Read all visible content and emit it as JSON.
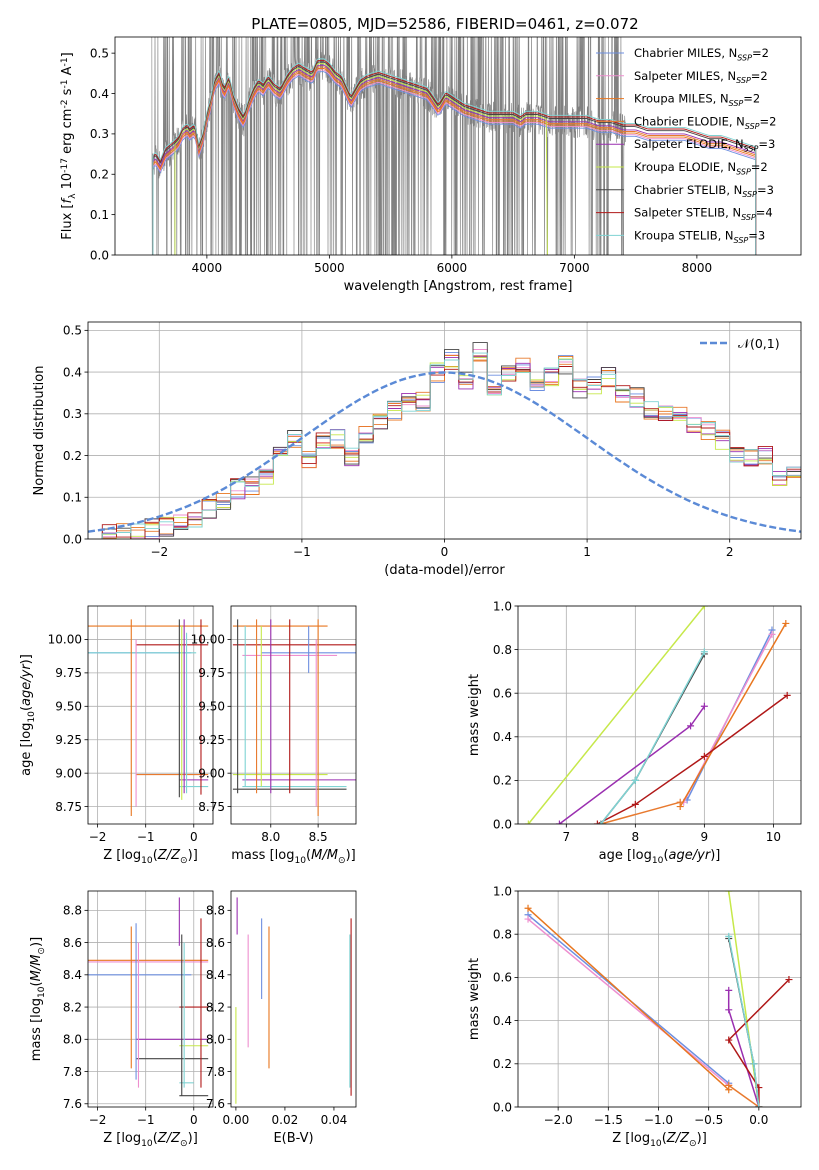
{
  "figure_title": "PLATE=0805, MJD=52586, FIBERID=0461, z=0.072",
  "colors": {
    "Chabrier MILES": "#6d8fe0",
    "Salpeter MILES": "#ee8fcf",
    "Kroupa MILES": "#e8761f",
    "Chabrier ELODIE": "#e87a2f",
    "Salpeter ELODIE": "#9a2fb0",
    "Kroupa ELODIE": "#c6e84a",
    "Chabrier STELIB": "#444444",
    "Salpeter STELIB": "#b01818",
    "Kroupa STELIB": "#7fd3d3",
    "data": "#808080",
    "normal": "#5b8ad6"
  },
  "chart_data": [
    {
      "id": "spectrum",
      "type": "line",
      "title": "PLATE=0805, MJD=52586, FIBERID=0461, z=0.072",
      "xlabel": "wavelength [Angstrom, rest frame]",
      "ylabel": "Flux [$f_\\lambda 10^{-17}$ erg cm$^{-2}$ s$^{-1}$ A$^{-1}$]",
      "xlim": [
        3250,
        8850
      ],
      "ylim": [
        0,
        0.54
      ],
      "xticks": [
        4000,
        5000,
        6000,
        7000,
        8000
      ],
      "yticks": [
        0.0,
        0.1,
        0.2,
        0.3,
        0.4,
        0.5
      ],
      "grid": false,
      "legend_position": "top-right",
      "legend": [
        "Chabrier MILES, N$_{SSP}$=2",
        "Salpeter MILES, N$_{SSP}$=2",
        "Kroupa MILES, N$_{SSP}$=2",
        "Chabrier ELODIE, N$_{SSP}$=2",
        "Salpeter ELODIE, N$_{SSP}$=3",
        "Kroupa ELODIE, N$_{SSP}$=2",
        "Chabrier STELIB, N$_{SSP}$=3",
        "Salpeter STELIB, N$_{SSP}$=4",
        "Kroupa STELIB, N$_{SSP}$=3"
      ],
      "data_range_x": [
        3550,
        7420
      ],
      "model_continuum": {
        "x": [
          3540,
          3560,
          3580,
          3620,
          3660,
          3700,
          3740,
          3770,
          3800,
          3840,
          3860,
          3900,
          3935,
          3970,
          4000,
          4030,
          4060,
          4100,
          4140,
          4180,
          4220,
          4260,
          4300,
          4340,
          4380,
          4420,
          4460,
          4500,
          4550,
          4600,
          4650,
          4700,
          4750,
          4800,
          4860,
          4900,
          4960,
          5000,
          5050,
          5100,
          5175,
          5250,
          5300,
          5400,
          5500,
          5600,
          5700,
          5800,
          5890,
          5950,
          6000,
          6100,
          6200,
          6300,
          6400,
          6500,
          6563,
          6600,
          6700,
          6800,
          6900,
          7000,
          7100,
          7200,
          7300,
          7400,
          7500,
          7600,
          7700,
          7800,
          7900,
          8000,
          8100,
          8200,
          8300,
          8400,
          8500
        ],
        "y": [
          0.25,
          0.23,
          0.24,
          0.22,
          0.25,
          0.26,
          0.27,
          0.28,
          0.3,
          0.31,
          0.3,
          0.31,
          0.26,
          0.29,
          0.34,
          0.37,
          0.42,
          0.44,
          0.4,
          0.43,
          0.38,
          0.35,
          0.33,
          0.37,
          0.4,
          0.42,
          0.41,
          0.43,
          0.41,
          0.4,
          0.43,
          0.45,
          0.46,
          0.45,
          0.44,
          0.47,
          0.47,
          0.46,
          0.44,
          0.43,
          0.38,
          0.42,
          0.43,
          0.44,
          0.43,
          0.42,
          0.41,
          0.4,
          0.36,
          0.39,
          0.38,
          0.36,
          0.35,
          0.34,
          0.34,
          0.34,
          0.33,
          0.34,
          0.34,
          0.33,
          0.33,
          0.33,
          0.33,
          0.32,
          0.32,
          0.31,
          0.31,
          0.3,
          0.3,
          0.3,
          0.3,
          0.29,
          0.28,
          0.28,
          0.27,
          0.26,
          0.25
        ]
      },
      "model_x_ranges": [
        [
          3560,
          8480
        ],
        [
          3560,
          8480
        ],
        [
          3560,
          8480
        ],
        [
          3560,
          8480
        ],
        [
          3560,
          8480
        ],
        [
          3740,
          6780
        ],
        [
          3560,
          8480
        ],
        [
          3560,
          8480
        ],
        [
          3560,
          8480
        ]
      ]
    },
    {
      "id": "residuals",
      "type": "histogram",
      "xlabel": "(data-model)/error",
      "ylabel": "Normed distribution",
      "xlim": [
        -2.5,
        2.5
      ],
      "ylim": [
        0,
        0.52
      ],
      "xticks": [
        -2,
        -1,
        0,
        1,
        2
      ],
      "yticks": [
        0.0,
        0.1,
        0.2,
        0.3,
        0.4,
        0.5
      ],
      "grid": true,
      "legend_position": "top-right",
      "legend": [
        "$\\mathcal{N}(0,1)$"
      ],
      "bin_width": 0.1,
      "bin_start": -2.5,
      "base_values": [
        0.005,
        0.01,
        0.012,
        0.015,
        0.025,
        0.03,
        0.04,
        0.05,
        0.07,
        0.09,
        0.12,
        0.13,
        0.15,
        0.21,
        0.24,
        0.19,
        0.23,
        0.24,
        0.2,
        0.25,
        0.28,
        0.31,
        0.33,
        0.33,
        0.4,
        0.43,
        0.38,
        0.45,
        0.37,
        0.4,
        0.42,
        0.36,
        0.39,
        0.42,
        0.36,
        0.37,
        0.39,
        0.35,
        0.34,
        0.31,
        0.3,
        0.3,
        0.28,
        0.26,
        0.24,
        0.2,
        0.19,
        0.2,
        0.15,
        0.17,
        0.14,
        0.12,
        0.1,
        0.1,
        0.09,
        0.08,
        0.07,
        0.05,
        0.05,
        0.04,
        0.03,
        0.03,
        0.02,
        0.01,
        0.005
      ],
      "hist_x_range": [
        -2.4,
        2.5
      ],
      "normal_mean": 0,
      "normal_std": 1
    },
    {
      "id": "age-vs-Z",
      "type": "errorbar",
      "xlabel": "Z [log$_{10}$($Z/Z_\\odot$)]",
      "ylabel": "age  [log$_{10}$($age/yr$)]",
      "xlim": [
        -2.2,
        0.4
      ],
      "ylim": [
        8.62,
        10.25
      ],
      "xticks": [
        -2,
        -1,
        0
      ],
      "yticks": [
        8.75,
        9.0,
        9.25,
        9.5,
        9.75,
        10.0
      ],
      "grid": true
    },
    {
      "id": "age-vs-mass",
      "type": "errorbar",
      "xlabel": "mass [log$_{10}$($M/M_\\odot$)]",
      "xlim": [
        7.58,
        8.9
      ],
      "ylim": [
        8.62,
        10.25
      ],
      "xticks": [
        8.0,
        8.5
      ],
      "yticks": [
        8.75,
        9.0,
        9.25,
        9.5,
        9.75,
        10.0
      ],
      "grid": true
    },
    {
      "id": "weight-vs-age",
      "type": "line",
      "xlabel": "age  [log$_{10}$($age/yr$)]",
      "ylabel": "mass weight",
      "xlim": [
        6.3,
        10.4
      ],
      "ylim": [
        0,
        1.0
      ],
      "xticks": [
        7,
        8,
        9,
        10
      ],
      "yticks": [
        0.0,
        0.2,
        0.4,
        0.6,
        0.8,
        1.0
      ],
      "grid": true
    },
    {
      "id": "mass-vs-Z",
      "type": "errorbar",
      "xlabel": "Z [log$_{10}$($Z/Z_\\odot$)]",
      "ylabel": "mass [log$_{10}$($M/M_\\odot$)]",
      "xlim": [
        -2.2,
        0.4
      ],
      "ylim": [
        7.58,
        8.92
      ],
      "xticks": [
        -2,
        -1,
        0
      ],
      "yticks": [
        7.6,
        7.8,
        8.0,
        8.2,
        8.4,
        8.6,
        8.8
      ],
      "grid": true
    },
    {
      "id": "mass-vs-EBV",
      "type": "errorbar",
      "xlabel": "E(B-V)",
      "xlim": [
        -0.002,
        0.049
      ],
      "ylim": [
        7.58,
        8.92
      ],
      "xticks": [
        0.0,
        0.02,
        0.04
      ],
      "yticks": [
        7.6,
        7.8,
        8.0,
        8.2,
        8.4,
        8.6,
        8.8
      ],
      "grid": false
    },
    {
      "id": "weight-vs-Z",
      "type": "line",
      "xlabel": "Z [log$_{10}$($Z/Z_\\odot$)]",
      "ylabel": "mass weight",
      "xlim": [
        -2.4,
        0.42
      ],
      "ylim": [
        0,
        1.0
      ],
      "xticks": [
        -2.0,
        -1.5,
        -1.0,
        -0.5,
        0.0
      ],
      "yticks": [
        0.0,
        0.2,
        0.4,
        0.6,
        0.8,
        1.0
      ],
      "grid": true
    }
  ],
  "ssp_models": [
    {
      "key": "Chabrier MILES",
      "age": [
        9.98,
        8.75
      ],
      "Z": [
        -2.3,
        -0.3
      ],
      "weight": [
        0.89,
        0.11
      ],
      "mass": [
        8.4,
        8.5
      ],
      "ebv": 0.01,
      "age_err": [
        [
          -2.1,
          -0.3,
          9.9
        ],
        [
          -0.2,
          9.0,
          10.1
        ]
      ],
      "mass_err_age": [
        [
          8.45,
          9.75,
          10.15
        ],
        [
          7.68,
          8.88,
          8.97
        ]
      ],
      "ebv_err": [
        8.25,
        8.75
      ]
    },
    {
      "key": "Salpeter MILES",
      "age": [
        9.98,
        8.7
      ],
      "Z": [
        -2.3,
        -0.3
      ],
      "weight": [
        0.87,
        0.1
      ],
      "mass": [
        8.48,
        8.48
      ],
      "ebv": 0.001,
      "ebv_err": [
        7.95,
        8.65
      ]
    },
    {
      "key": "Kroupa MILES",
      "age": [
        10.18,
        8.65
      ],
      "Z": [
        -2.3,
        -0.3
      ],
      "weight": [
        0.92,
        0.08
      ],
      "mass": [
        8.49,
        8.49
      ],
      "ebv": 0.013,
      "ebv_err": [
        7.82,
        8.7
      ]
    },
    {
      "key": "Chabrier ELODIE",
      "age": [
        8.65,
        7.5
      ],
      "Z": [
        -0.3,
        0.0
      ],
      "weight": [
        0.1,
        0.0
      ],
      "mass": [
        7.85,
        7.85
      ],
      "ebv": 0.0
    },
    {
      "key": "Salpeter ELODIE",
      "age": [
        9.0,
        8.8,
        6.9
      ],
      "Z": [
        -0.3,
        -0.3,
        0.0
      ],
      "weight": [
        0.54,
        0.45,
        0.0
      ],
      "mass": [
        8.0,
        8.0
      ],
      "ebv": 0.0,
      "ebv_err": [
        8.65,
        8.88
      ]
    },
    {
      "key": "Kroupa ELODIE",
      "age": [
        9.0,
        6.45
      ],
      "Z": [
        -0.3,
        0.0
      ],
      "weight": [
        1.0,
        0.0
      ],
      "mass": [
        7.9,
        7.9
      ],
      "ebv": 0.0,
      "ebv_err": [
        7.6,
        8.2
      ]
    },
    {
      "key": "Chabrier STELIB",
      "age": [
        9.0,
        8.0,
        7.5
      ],
      "Z": [
        -0.3,
        -0.05,
        0.0
      ],
      "weight": [
        0.78,
        0.2,
        0.0
      ],
      "mass": [
        7.65,
        7.65
      ],
      "ebv": 0.047
    },
    {
      "key": "Salpeter STELIB",
      "age": [
        10.2,
        9.0,
        8.0,
        7.45
      ],
      "Z": [
        0.3,
        -0.3,
        0.0,
        0.0
      ],
      "weight": [
        0.59,
        0.31,
        0.09,
        0.0
      ],
      "mass": [
        8.2,
        8.2
      ],
      "ebv": 0.047,
      "ebv_err": [
        7.65,
        8.75
      ]
    },
    {
      "key": "Kroupa STELIB",
      "age": [
        9.0,
        8.0,
        7.5
      ],
      "Z": [
        -0.3,
        -0.05,
        0.0
      ],
      "weight": [
        0.79,
        0.2,
        0.0
      ],
      "mass": [
        7.73,
        7.73
      ],
      "ebv": 0.046,
      "ebv_err": [
        7.7,
        8.65
      ]
    }
  ]
}
